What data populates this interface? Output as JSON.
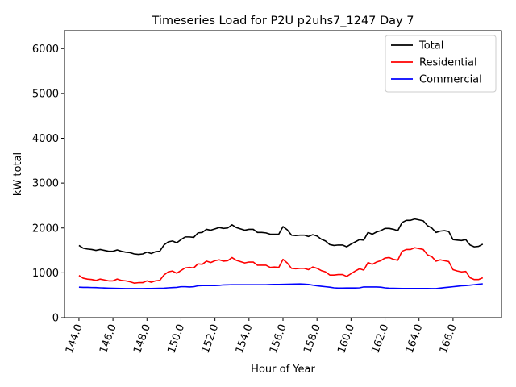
{
  "chart_data": {
    "type": "line",
    "title": "Timeseries Load for P2U p2uhs7_1247  Day 7",
    "xlabel": "Hour of Year",
    "ylabel": "kW total",
    "xlim": [
      143.15,
      168.85
    ],
    "ylim": [
      0,
      6400
    ],
    "xticks": [
      144,
      146,
      148,
      150,
      152,
      154,
      156,
      158,
      160,
      162,
      164,
      166
    ],
    "xtick_labels": [
      "144.0",
      "146.0",
      "148.0",
      "150.0",
      "152.0",
      "154.0",
      "156.0",
      "158.0",
      "160.0",
      "162.0",
      "164.0",
      "166.0"
    ],
    "yticks": [
      0,
      1000,
      2000,
      3000,
      4000,
      5000,
      6000
    ],
    "ytick_labels": [
      "0",
      "1000",
      "2000",
      "3000",
      "4000",
      "5000",
      "6000"
    ],
    "legend_position": "top-right",
    "x": [
      144.0,
      144.25,
      144.5,
      144.75,
      145.0,
      145.25,
      145.5,
      145.75,
      146.0,
      146.25,
      146.5,
      146.75,
      147.0,
      147.25,
      147.5,
      147.75,
      148.0,
      148.25,
      148.5,
      148.75,
      149.0,
      149.25,
      149.5,
      149.75,
      150.0,
      150.25,
      150.5,
      150.75,
      151.0,
      151.25,
      151.5,
      151.75,
      152.0,
      152.25,
      152.5,
      152.75,
      153.0,
      153.25,
      153.5,
      153.75,
      154.0,
      154.25,
      154.5,
      154.75,
      155.0,
      155.25,
      155.5,
      155.75,
      156.0,
      156.25,
      156.5,
      156.75,
      157.0,
      157.25,
      157.5,
      157.75,
      158.0,
      158.25,
      158.5,
      158.75,
      159.0,
      159.25,
      159.5,
      159.75,
      160.0,
      160.25,
      160.5,
      160.75,
      161.0,
      161.25,
      161.5,
      161.75,
      162.0,
      162.25,
      162.5,
      162.75,
      163.0,
      163.25,
      163.5,
      163.75,
      164.0,
      164.25,
      164.5,
      164.75,
      165.0,
      165.25,
      165.5,
      165.75,
      166.0,
      166.25,
      166.5,
      166.75,
      167.0,
      167.25,
      167.5,
      167.75
    ],
    "series": [
      {
        "name": "Total",
        "color": "#000000",
        "values": [
          1610,
          1550,
          1530,
          1520,
          1500,
          1520,
          1500,
          1480,
          1480,
          1510,
          1480,
          1460,
          1450,
          1420,
          1410,
          1420,
          1460,
          1430,
          1470,
          1480,
          1620,
          1690,
          1710,
          1670,
          1740,
          1800,
          1800,
          1790,
          1890,
          1900,
          1970,
          1950,
          1980,
          2010,
          1990,
          2000,
          2070,
          2010,
          1980,
          1950,
          1970,
          1970,
          1900,
          1900,
          1890,
          1860,
          1860,
          1860,
          2030,
          1960,
          1840,
          1830,
          1840,
          1840,
          1810,
          1850,
          1820,
          1750,
          1710,
          1630,
          1610,
          1620,
          1620,
          1580,
          1640,
          1690,
          1740,
          1730,
          1900,
          1860,
          1910,
          1940,
          1990,
          1990,
          1970,
          1940,
          2120,
          2170,
          2170,
          2200,
          2180,
          2160,
          2050,
          2000,
          1900,
          1930,
          1940,
          1920,
          1740,
          1730,
          1720,
          1740,
          1620,
          1580,
          1590,
          1640
        ]
      },
      {
        "name": "Residential",
        "color": "#ff0000",
        "values": [
          940,
          880,
          860,
          850,
          830,
          860,
          840,
          820,
          820,
          860,
          830,
          820,
          800,
          770,
          780,
          780,
          820,
          790,
          820,
          830,
          950,
          1020,
          1040,
          990,
          1050,
          1110,
          1120,
          1110,
          1200,
          1190,
          1260,
          1230,
          1270,
          1290,
          1260,
          1270,
          1340,
          1280,
          1250,
          1220,
          1240,
          1240,
          1170,
          1170,
          1170,
          1120,
          1130,
          1120,
          1300,
          1220,
          1100,
          1090,
          1100,
          1100,
          1070,
          1130,
          1100,
          1050,
          1020,
          950,
          950,
          960,
          960,
          920,
          980,
          1040,
          1090,
          1060,
          1230,
          1190,
          1240,
          1270,
          1330,
          1340,
          1300,
          1280,
          1480,
          1520,
          1520,
          1560,
          1540,
          1520,
          1400,
          1360,
          1260,
          1290,
          1270,
          1250,
          1070,
          1040,
          1020,
          1030,
          890,
          850,
          850,
          890
        ]
      },
      {
        "name": "Commercial",
        "color": "#0000ff",
        "values": [
          680,
          675,
          675,
          672,
          670,
          665,
          662,
          658,
          655,
          652,
          650,
          648,
          648,
          648,
          648,
          648,
          650,
          650,
          652,
          655,
          658,
          665,
          670,
          675,
          690,
          690,
          685,
          690,
          710,
          715,
          715,
          715,
          715,
          720,
          730,
          732,
          735,
          735,
          735,
          735,
          735,
          735,
          735,
          735,
          735,
          738,
          740,
          740,
          742,
          745,
          748,
          750,
          752,
          748,
          740,
          725,
          710,
          700,
          690,
          680,
          665,
          660,
          660,
          662,
          662,
          662,
          665,
          685,
          685,
          685,
          685,
          680,
          665,
          658,
          655,
          652,
          650,
          650,
          650,
          650,
          650,
          650,
          650,
          648,
          648,
          660,
          670,
          680,
          690,
          700,
          710,
          715,
          725,
          735,
          745,
          755
        ]
      }
    ]
  }
}
